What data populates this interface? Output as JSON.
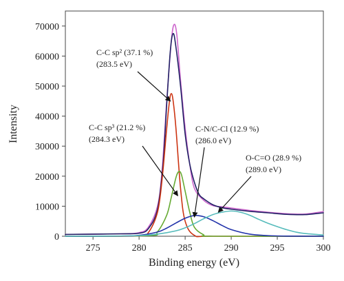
{
  "chart_data": {
    "type": "line",
    "xlabel": "Binding energy (eV)",
    "ylabel": "Intensity",
    "xlim": [
      272,
      300
    ],
    "ylim": [
      0,
      75000
    ],
    "x_ticks": [
      275,
      280,
      285,
      290,
      295,
      300
    ],
    "y_ticks": [
      0,
      10000,
      20000,
      30000,
      40000,
      50000,
      60000,
      70000
    ],
    "x_tick_labels": [
      "275",
      "280",
      "285",
      "290",
      "295",
      "300"
    ],
    "y_tick_labels": [
      "0",
      "10000",
      "20000",
      "30000",
      "40000",
      "50000",
      "60000",
      "70000"
    ],
    "grid": false,
    "series": [
      {
        "color": "#cc66cc",
        "x": [
          272,
          278,
          280,
          281,
          282,
          282.5,
          283,
          283.5,
          283.8,
          284.1,
          284.5,
          285,
          285.5,
          286,
          287,
          288,
          289,
          290,
          291,
          292,
          294,
          296,
          298,
          300
        ],
        "y": [
          600,
          800,
          1200,
          3000,
          10000,
          22000,
          45000,
          65000,
          70500,
          67000,
          52000,
          36000,
          24000,
          16000,
          12000,
          10200,
          9800,
          9400,
          9000,
          8600,
          8000,
          7500,
          7400,
          8200
        ]
      },
      {
        "color": "#222266",
        "x": [
          272,
          278,
          280,
          281,
          282,
          282.6,
          283,
          283.4,
          283.7,
          284,
          284.5,
          285,
          285.5,
          286,
          286.5,
          287,
          288,
          289,
          290,
          292,
          294,
          296,
          298,
          300
        ],
        "y": [
          600,
          800,
          1000,
          2500,
          9000,
          24000,
          44000,
          62000,
          67500,
          63000,
          50000,
          34000,
          24000,
          18000,
          14000,
          12500,
          10500,
          9500,
          9000,
          8300,
          7800,
          7300,
          7200,
          7800
        ]
      },
      {
        "color": "#cc3311",
        "x": [
          272,
          280,
          281,
          282,
          282.5,
          283,
          283.3,
          283.5,
          283.7,
          284,
          284.5,
          285,
          286,
          288,
          300
        ],
        "y": [
          0,
          100,
          1200,
          8000,
          19000,
          36000,
          45000,
          47500,
          45000,
          36000,
          16000,
          5000,
          300,
          0,
          0
        ]
      },
      {
        "color": "#66aa33",
        "x": [
          272,
          281,
          282,
          283,
          283.5,
          284,
          284.3,
          284.6,
          285,
          285.5,
          286,
          287,
          288,
          300
        ],
        "y": [
          0,
          200,
          1500,
          7000,
          13000,
          19500,
          21500,
          20500,
          15000,
          8000,
          3000,
          500,
          0,
          0
        ]
      },
      {
        "color": "#2233aa",
        "x": [
          272,
          278,
          280,
          282,
          283,
          284,
          285,
          286,
          287,
          288,
          289,
          290,
          292,
          294,
          296,
          300
        ],
        "y": [
          0,
          50,
          300,
          1400,
          2700,
          4400,
          6000,
          6900,
          6500,
          5200,
          3600,
          2200,
          700,
          200,
          50,
          0
        ]
      },
      {
        "color": "#55bbbb",
        "x": [
          272,
          278,
          280,
          282,
          284,
          285,
          286,
          287,
          288,
          289,
          290,
          291,
          292,
          293,
          294,
          295,
          296,
          297,
          298,
          300
        ],
        "y": [
          0,
          80,
          200,
          700,
          1800,
          2800,
          4200,
          5800,
          7200,
          8000,
          8400,
          8000,
          7000,
          5600,
          4300,
          3200,
          2200,
          1400,
          900,
          400
        ]
      }
    ],
    "annotations": [
      {
        "lines": [
          "C-C sp² (37.1 %)",
          "(283.5 eV)"
        ],
        "arrow_to": [
          283.4,
          45000
        ]
      },
      {
        "lines": [
          "C-C sp³ (21.2 %)",
          "(284.3 eV)"
        ],
        "arrow_to": [
          284.2,
          13500
        ]
      },
      {
        "lines": [
          "C-N/C-Cl (12.9 %)",
          "(286.0 eV)"
        ],
        "arrow_to": [
          286.0,
          6400
        ]
      },
      {
        "lines": [
          "O-C=O (28.9 %)",
          "(289.0 eV)"
        ],
        "arrow_to": [
          288.6,
          8000
        ]
      }
    ]
  }
}
